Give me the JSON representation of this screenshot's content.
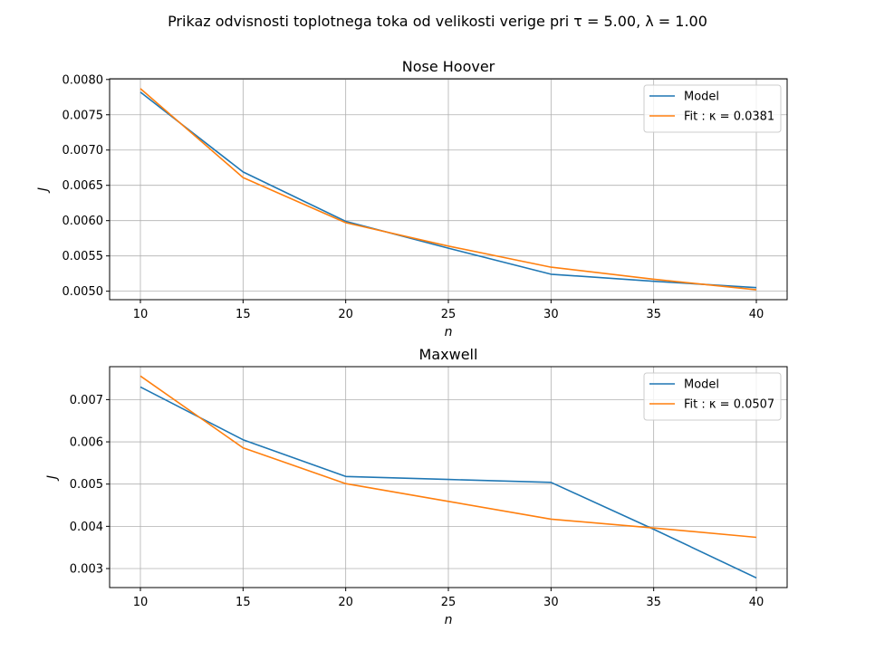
{
  "figure": {
    "suptitle": "Prikaz odvisnosti toplotnega toka od velikosti verige pri τ = 5.00, λ = 1.00"
  },
  "colors": {
    "model": "#1f77b4",
    "fit": "#ff7f0e",
    "grid": "#b0b0b0"
  },
  "chart_data": [
    {
      "type": "line",
      "title": "Nose Hoover",
      "xlabel": "n",
      "ylabel": "J",
      "x": [
        10,
        15,
        20,
        25,
        30,
        35,
        40
      ],
      "xticks": [
        "10",
        "15",
        "20",
        "25",
        "30",
        "35",
        "40"
      ],
      "xlim": [
        8.5,
        41.5
      ],
      "ylim": [
        0.00488,
        0.00801
      ],
      "yticks": [
        "0.0050",
        "0.0055",
        "0.0060",
        "0.0065",
        "0.0070",
        "0.0075",
        "0.0080"
      ],
      "ytick_values": [
        0.005,
        0.0055,
        0.006,
        0.0065,
        0.007,
        0.0075,
        0.008
      ],
      "grid": true,
      "legend_position": "top-right",
      "series": [
        {
          "name": "Model",
          "color": "#1f77b4",
          "values": [
            0.00782,
            0.00669,
            0.00599,
            0.00561,
            0.00524,
            0.00514,
            0.00505
          ]
        },
        {
          "name": "Fit : κ = 0.0381",
          "color": "#ff7f0e",
          "values": [
            0.00787,
            0.00661,
            0.00597,
            0.00564,
            0.00534,
            0.00517,
            0.00502
          ]
        }
      ]
    },
    {
      "type": "line",
      "title": "Maxwell",
      "xlabel": "n",
      "ylabel": "J",
      "x": [
        10,
        15,
        20,
        25,
        30,
        35,
        40
      ],
      "xticks": [
        "10",
        "15",
        "20",
        "25",
        "30",
        "35",
        "40"
      ],
      "xlim": [
        8.5,
        41.5
      ],
      "ylim": [
        0.00255,
        0.00778
      ],
      "yticks": [
        "0.003",
        "0.004",
        "0.005",
        "0.006",
        "0.007"
      ],
      "ytick_values": [
        0.003,
        0.004,
        0.005,
        0.006,
        0.007
      ],
      "grid": true,
      "legend_position": "top-right",
      "series": [
        {
          "name": "Model",
          "color": "#1f77b4",
          "values": [
            0.0073,
            0.00605,
            0.00518,
            0.00511,
            0.00504,
            0.00393,
            0.00278
          ]
        },
        {
          "name": "Fit : κ = 0.0507",
          "color": "#ff7f0e",
          "values": [
            0.00756,
            0.00586,
            0.00501,
            0.00459,
            0.00417,
            0.00396,
            0.00374
          ]
        }
      ]
    }
  ]
}
